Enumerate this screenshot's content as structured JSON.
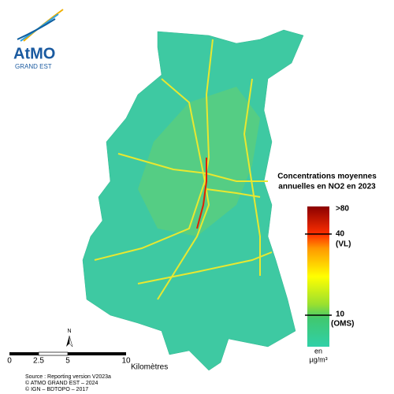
{
  "logo": {
    "name": "AtMO",
    "subtitle": "GRAND EST"
  },
  "legend": {
    "title_lines": [
      "Concentrations moyennes",
      "annuelles en NO2 en 2023"
    ],
    "labels": [
      ">80",
      "40",
      "(VL)",
      "10",
      "(OMS)"
    ],
    "unit": [
      "en",
      "µg/m³"
    ]
  },
  "north": "N",
  "scale_bar": {
    "ticks": [
      "0",
      "2.5",
      "5",
      "10"
    ],
    "unit": "Kilomètres"
  },
  "source": [
    "Source : Reporting version V2023a",
    "© ATMO GRAND EST – 2024",
    "© IGN – BDTOPO – 2017"
  ]
}
